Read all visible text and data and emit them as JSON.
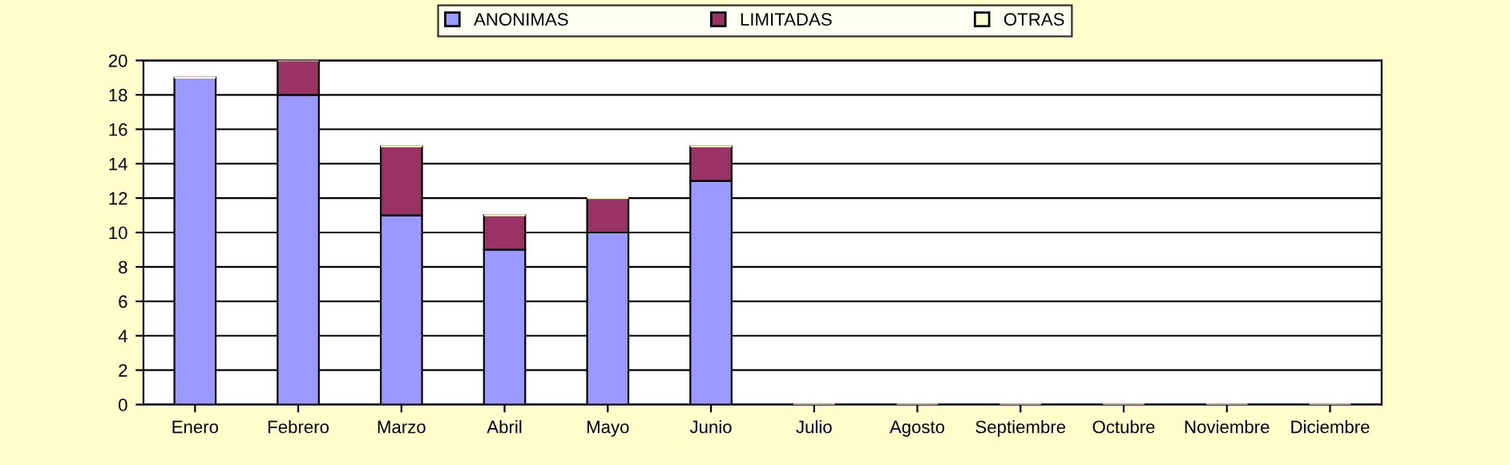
{
  "chart_data": {
    "type": "bar",
    "stacked": true,
    "categories": [
      "Enero",
      "Febrero",
      "Marzo",
      "Abril",
      "Mayo",
      "Junio",
      "Julio",
      "Agosto",
      "Septiembre",
      "Octubre",
      "Noviembre",
      "Diciembre"
    ],
    "series": [
      {
        "name": "ANONIMAS",
        "color": "#9999ff",
        "values": [
          19,
          18,
          11,
          9,
          10,
          13,
          0,
          0,
          0,
          0,
          0,
          0
        ]
      },
      {
        "name": "LIMITADAS",
        "color": "#993366",
        "values": [
          0,
          2,
          4,
          2,
          2,
          2,
          0,
          0,
          0,
          0,
          0,
          0
        ]
      },
      {
        "name": "OTRAS",
        "color": "#ffffcc",
        "values": [
          0,
          0,
          0,
          0,
          0,
          0,
          0,
          0,
          0,
          0,
          0,
          0
        ]
      }
    ],
    "ylim": [
      0,
      20
    ],
    "yticks": [
      0,
      2,
      4,
      6,
      8,
      10,
      12,
      14,
      16,
      18,
      20
    ],
    "grid": "y",
    "legend": "top"
  }
}
